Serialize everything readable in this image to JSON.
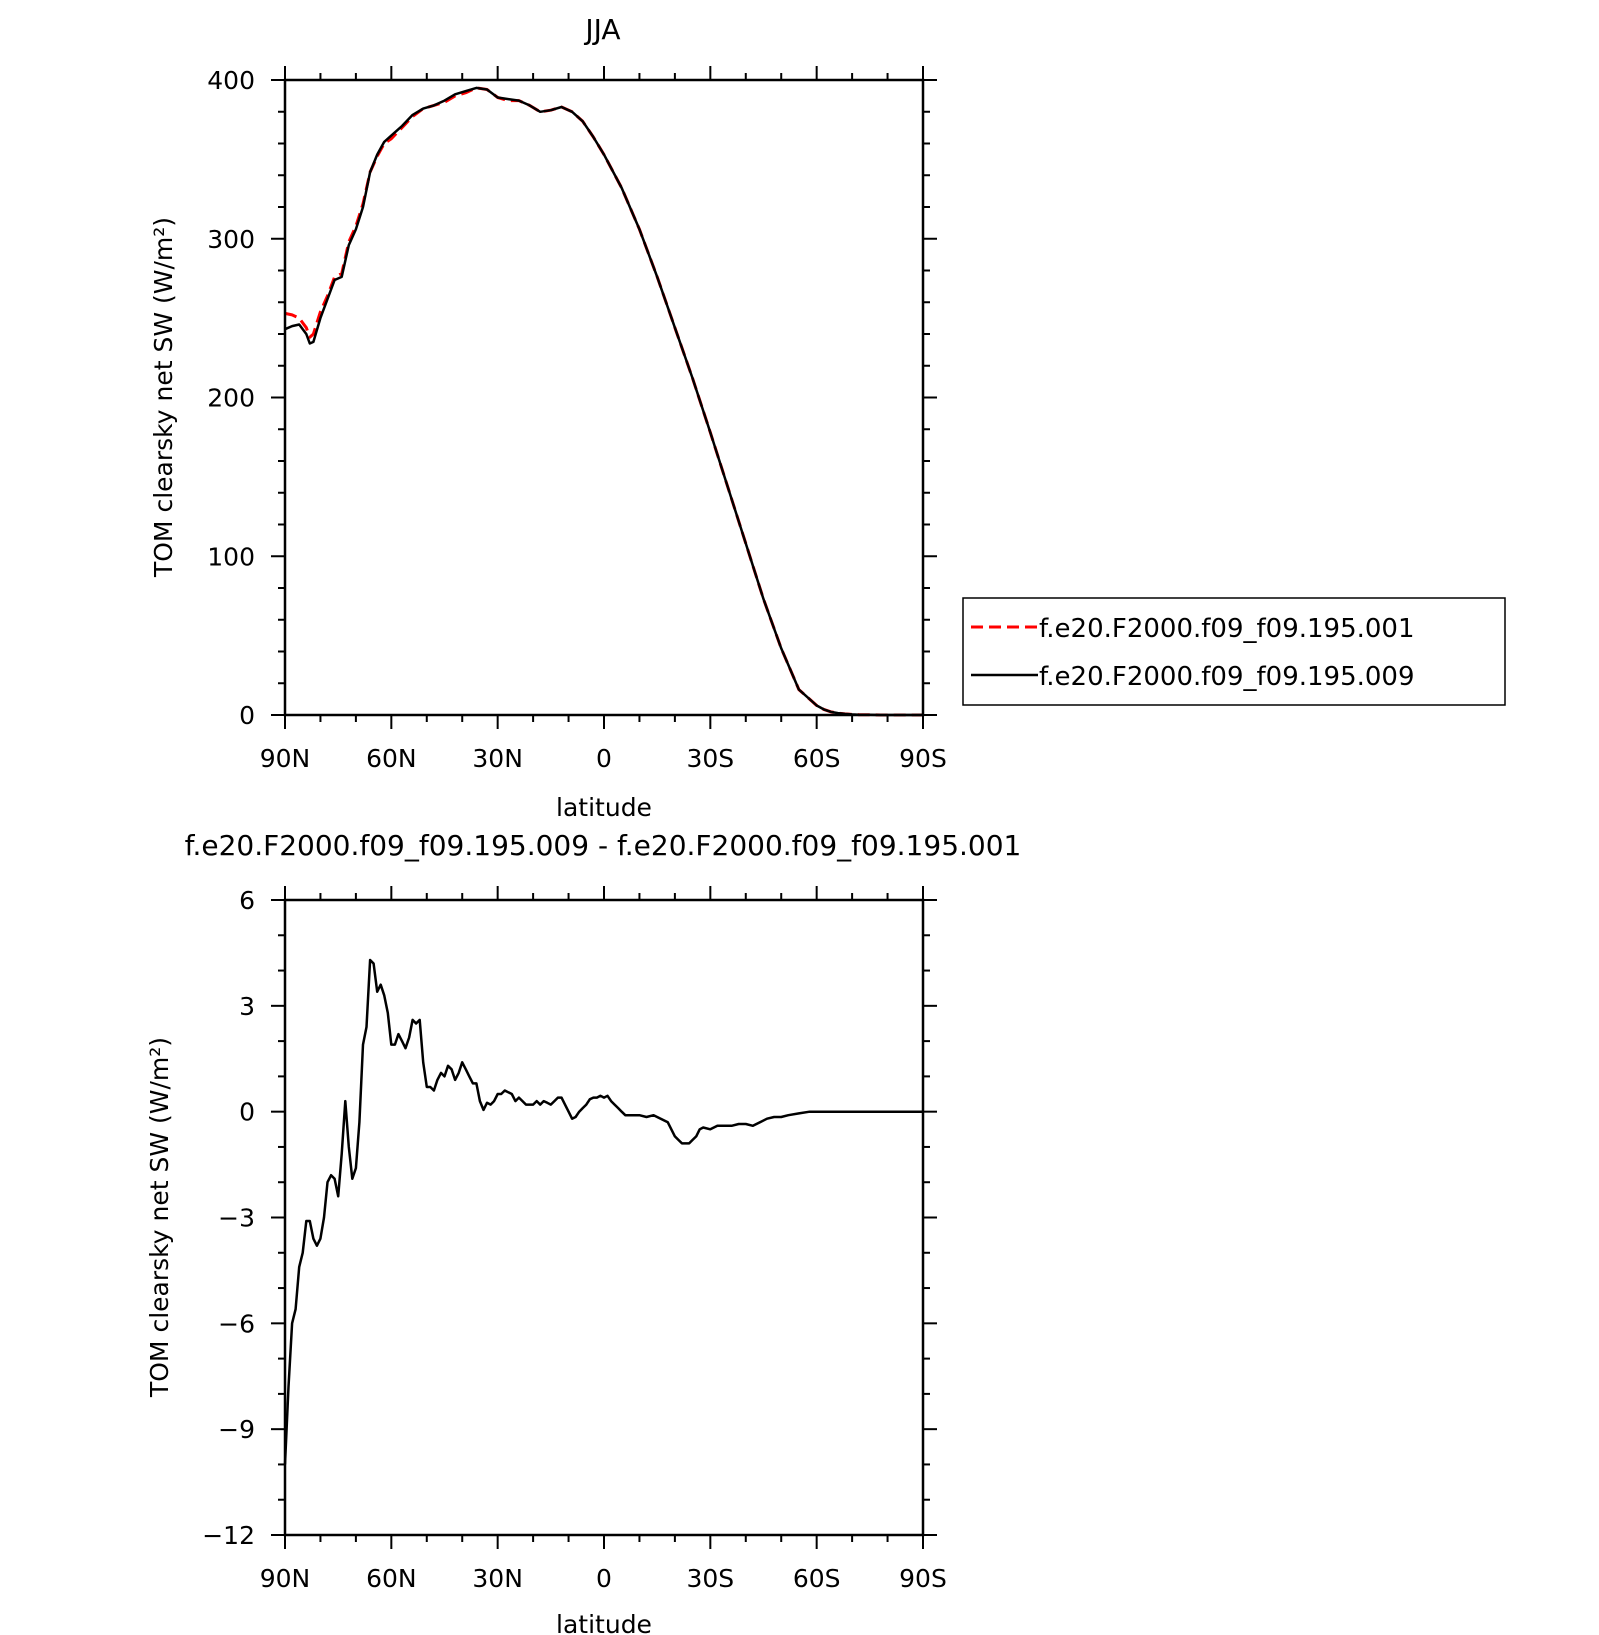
{
  "chart_data": [
    {
      "type": "line",
      "title": "JJA",
      "xlabel": "latitude",
      "ylabel": "TOM clearsky net SW (W/m²)",
      "xlim": [
        90,
        -90
      ],
      "ylim": [
        0,
        400
      ],
      "xticks": [
        90,
        60,
        30,
        0,
        -30,
        -60,
        -90
      ],
      "xtick_labels": [
        "90N",
        "60N",
        "30N",
        "0",
        "30S",
        "60S",
        "90S"
      ],
      "yticks": [
        0,
        100,
        200,
        300,
        400
      ],
      "ytick_labels": [
        "0",
        "100",
        "200",
        "300",
        "400"
      ],
      "legend_position": "right",
      "series": [
        {
          "name": "f.e20.F2000.f09_f09.195.001",
          "color": "#ff0000",
          "dash": "dashed",
          "x": [
            90,
            88,
            86,
            84,
            83,
            82,
            80,
            78,
            76,
            74,
            72,
            70,
            68,
            66,
            64,
            62,
            60,
            57,
            54,
            51,
            48,
            45,
            42,
            39,
            36,
            33,
            30,
            27,
            24,
            21,
            18,
            15,
            12,
            9,
            6,
            3,
            0,
            -5,
            -10,
            -15,
            -20,
            -25,
            -30,
            -35,
            -40,
            -45,
            -50,
            -55,
            -60,
            -62,
            -64,
            -66,
            -68,
            -70,
            -72,
            -75,
            -78,
            -81,
            -84,
            -87,
            -90
          ],
          "y": [
            253,
            252,
            250,
            244,
            238,
            240,
            254,
            264,
            276,
            278,
            298,
            308,
            322,
            342,
            352,
            360,
            363,
            370,
            377,
            382,
            384,
            386,
            390,
            392,
            395,
            394,
            389,
            387,
            387,
            384,
            380,
            381,
            383,
            380,
            374,
            364,
            353,
            332,
            306,
            276,
            244,
            212,
            178,
            143,
            108,
            73,
            42,
            16,
            6,
            3.5,
            2,
            1.2,
            0.7,
            0.4,
            0.2,
            0.1,
            0,
            0,
            0,
            0,
            0
          ]
        },
        {
          "name": "f.e20.F2000.f09_f09.195.009",
          "color": "#000000",
          "dash": "solid",
          "x": [
            90,
            88,
            86,
            84,
            83,
            82,
            80,
            78,
            76,
            74,
            72,
            70,
            68,
            66,
            64,
            62,
            60,
            57,
            54,
            51,
            48,
            45,
            42,
            39,
            36,
            33,
            30,
            27,
            24,
            21,
            18,
            15,
            12,
            9,
            6,
            3,
            0,
            -5,
            -10,
            -15,
            -20,
            -25,
            -30,
            -35,
            -40,
            -45,
            -50,
            -55,
            -60,
            -62,
            -64,
            -66,
            -68,
            -70,
            -72,
            -75,
            -78,
            -81,
            -84,
            -87,
            -90
          ],
          "y": [
            243,
            245,
            246,
            240,
            234,
            235,
            250,
            262,
            274,
            276,
            296,
            306,
            320,
            342,
            353,
            361,
            365,
            371,
            378,
            382,
            384,
            387,
            391,
            393,
            395,
            394,
            389,
            388,
            387,
            384,
            380,
            381,
            383,
            380,
            374,
            364,
            353,
            332,
            306,
            276,
            244,
            212,
            178,
            143,
            108,
            73,
            42,
            16,
            6,
            3.5,
            2,
            1.2,
            0.7,
            0.4,
            0.2,
            0.1,
            0,
            0,
            0,
            0,
            0
          ]
        }
      ]
    },
    {
      "type": "line",
      "title": "f.e20.F2000.f09_f09.195.009 - f.e20.F2000.f09_f09.195.001",
      "xlabel": "latitude",
      "ylabel": "TOM clearsky net SW (W/m²)",
      "xlim": [
        90,
        -90
      ],
      "ylim": [
        -12,
        6
      ],
      "xticks": [
        90,
        60,
        30,
        0,
        -30,
        -60,
        -90
      ],
      "xtick_labels": [
        "90N",
        "60N",
        "30N",
        "0",
        "30S",
        "60S",
        "90S"
      ],
      "yticks": [
        6,
        3,
        0,
        -3,
        -6,
        -9,
        -12
      ],
      "ytick_labels": [
        "6",
        "3",
        "0",
        "−3",
        "−6",
        "−9",
        "−12"
      ],
      "series": [
        {
          "color": "#000000",
          "dash": "solid",
          "x": [
            90,
            89,
            88,
            87,
            86,
            85,
            84,
            83,
            82,
            81,
            80,
            79,
            78,
            77,
            76,
            75,
            74,
            73,
            72,
            71,
            70,
            69,
            68,
            67,
            66,
            65,
            64,
            63,
            62,
            61,
            60,
            59,
            58,
            57,
            56,
            55,
            54,
            53,
            52,
            51,
            50,
            49,
            48,
            47,
            46,
            45,
            44,
            43,
            42,
            41,
            40,
            39,
            38,
            37,
            36,
            35,
            34,
            33,
            32,
            31,
            30,
            29,
            28,
            27,
            26,
            25,
            24,
            23,
            22,
            21,
            20,
            19,
            18,
            17,
            16,
            15,
            14,
            13,
            12,
            11,
            10,
            9,
            8,
            7,
            6,
            5,
            4,
            3,
            2,
            1,
            0,
            -1,
            -2,
            -3,
            -4,
            -5,
            -6,
            -8,
            -10,
            -12,
            -14,
            -16,
            -18,
            -20,
            -21,
            -22,
            -23,
            -24,
            -25,
            -26,
            -27,
            -28,
            -30,
            -32,
            -34,
            -36,
            -38,
            -40,
            -42,
            -44,
            -46,
            -48,
            -50,
            -52,
            -55,
            -58,
            -60,
            -65,
            -70,
            -75,
            -80,
            -85,
            -90
          ],
          "y": [
            -10.0,
            -7.8,
            -6.0,
            -5.6,
            -4.4,
            -4.0,
            -3.1,
            -3.1,
            -3.6,
            -3.8,
            -3.6,
            -3.0,
            -2.0,
            -1.8,
            -1.9,
            -2.4,
            -1.2,
            0.3,
            -1.0,
            -1.9,
            -1.6,
            -0.3,
            1.9,
            2.4,
            4.3,
            4.2,
            3.4,
            3.6,
            3.3,
            2.8,
            1.9,
            1.9,
            2.2,
            2.0,
            1.8,
            2.1,
            2.6,
            2.5,
            2.6,
            1.4,
            0.7,
            0.7,
            0.6,
            0.9,
            1.1,
            1.0,
            1.3,
            1.2,
            0.9,
            1.1,
            1.4,
            1.2,
            1.0,
            0.8,
            0.8,
            0.3,
            0.05,
            0.25,
            0.2,
            0.3,
            0.5,
            0.5,
            0.6,
            0.55,
            0.5,
            0.3,
            0.4,
            0.3,
            0.2,
            0.2,
            0.2,
            0.3,
            0.2,
            0.3,
            0.25,
            0.2,
            0.3,
            0.4,
            0.4,
            0.2,
            0.0,
            -0.2,
            -0.15,
            0.0,
            0.1,
            0.2,
            0.35,
            0.4,
            0.4,
            0.45,
            0.4,
            0.45,
            0.3,
            0.2,
            0.1,
            0.0,
            -0.1,
            -0.1,
            -0.1,
            -0.15,
            -0.1,
            -0.2,
            -0.3,
            -0.7,
            -0.8,
            -0.9,
            -0.9,
            -0.9,
            -0.8,
            -0.7,
            -0.5,
            -0.45,
            -0.5,
            -0.4,
            -0.4,
            -0.4,
            -0.35,
            -0.35,
            -0.4,
            -0.3,
            -0.2,
            -0.15,
            -0.15,
            -0.1,
            -0.05,
            0.0,
            0.0,
            0.0,
            0.0,
            0.0,
            0.0,
            0.0,
            0.0
          ]
        }
      ]
    }
  ]
}
